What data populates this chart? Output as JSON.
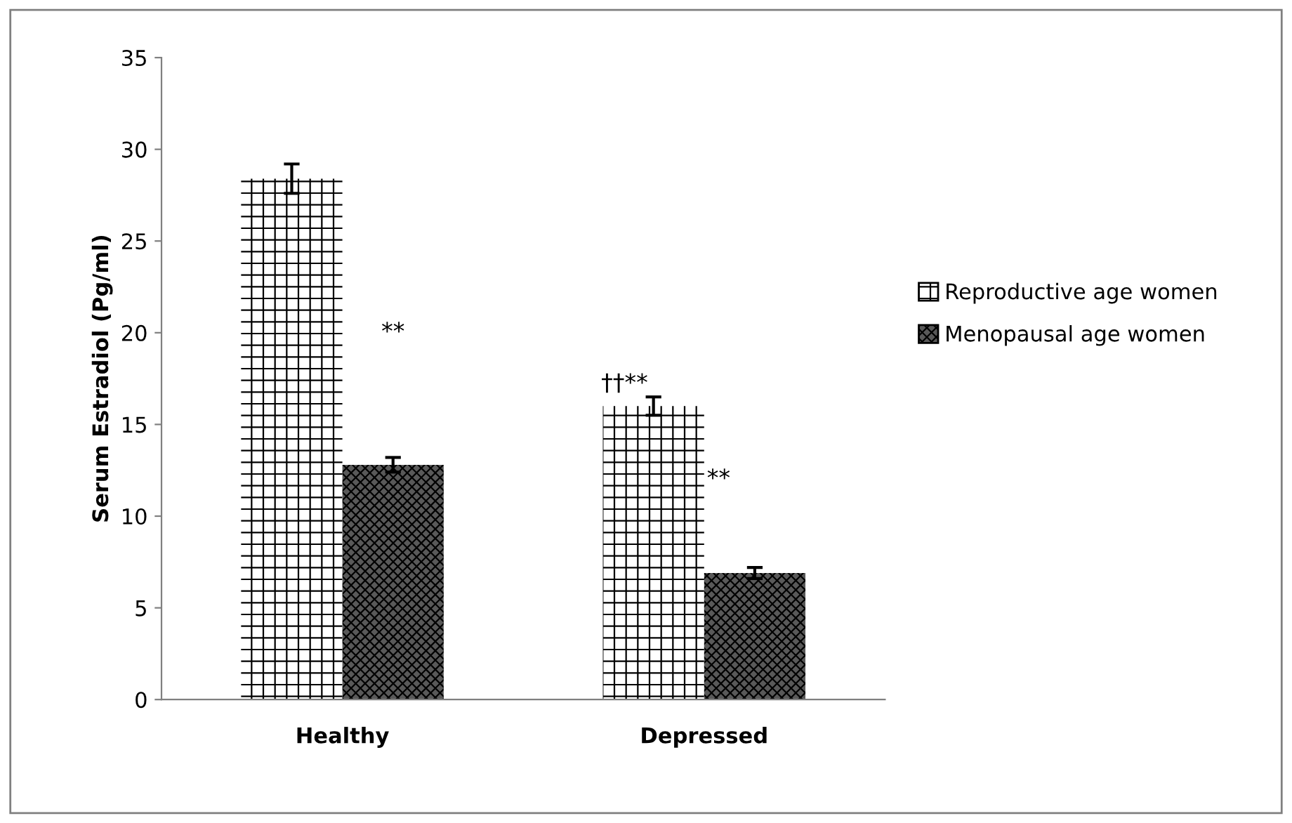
{
  "chart_data": {
    "type": "bar",
    "ylabel": "Serum Estradiol (Pg/ml)",
    "categories": [
      "Healthy",
      "Depressed"
    ],
    "series": [
      {
        "name": "Reproductive age women",
        "color": "#ffffff",
        "values": [
          28.4,
          16.0
        ],
        "errors": [
          0.8,
          0.5
        ]
      },
      {
        "name": "Menopausal age women",
        "color": "#595959",
        "values": [
          12.8,
          6.9
        ],
        "errors": [
          0.4,
          0.3
        ]
      }
    ],
    "ylim": [
      0,
      35
    ],
    "yticks": [
      0,
      5,
      10,
      15,
      20,
      25,
      30,
      35
    ],
    "grid": false,
    "legend": "right",
    "annotations": [
      "**",
      "††**",
      "**"
    ]
  }
}
